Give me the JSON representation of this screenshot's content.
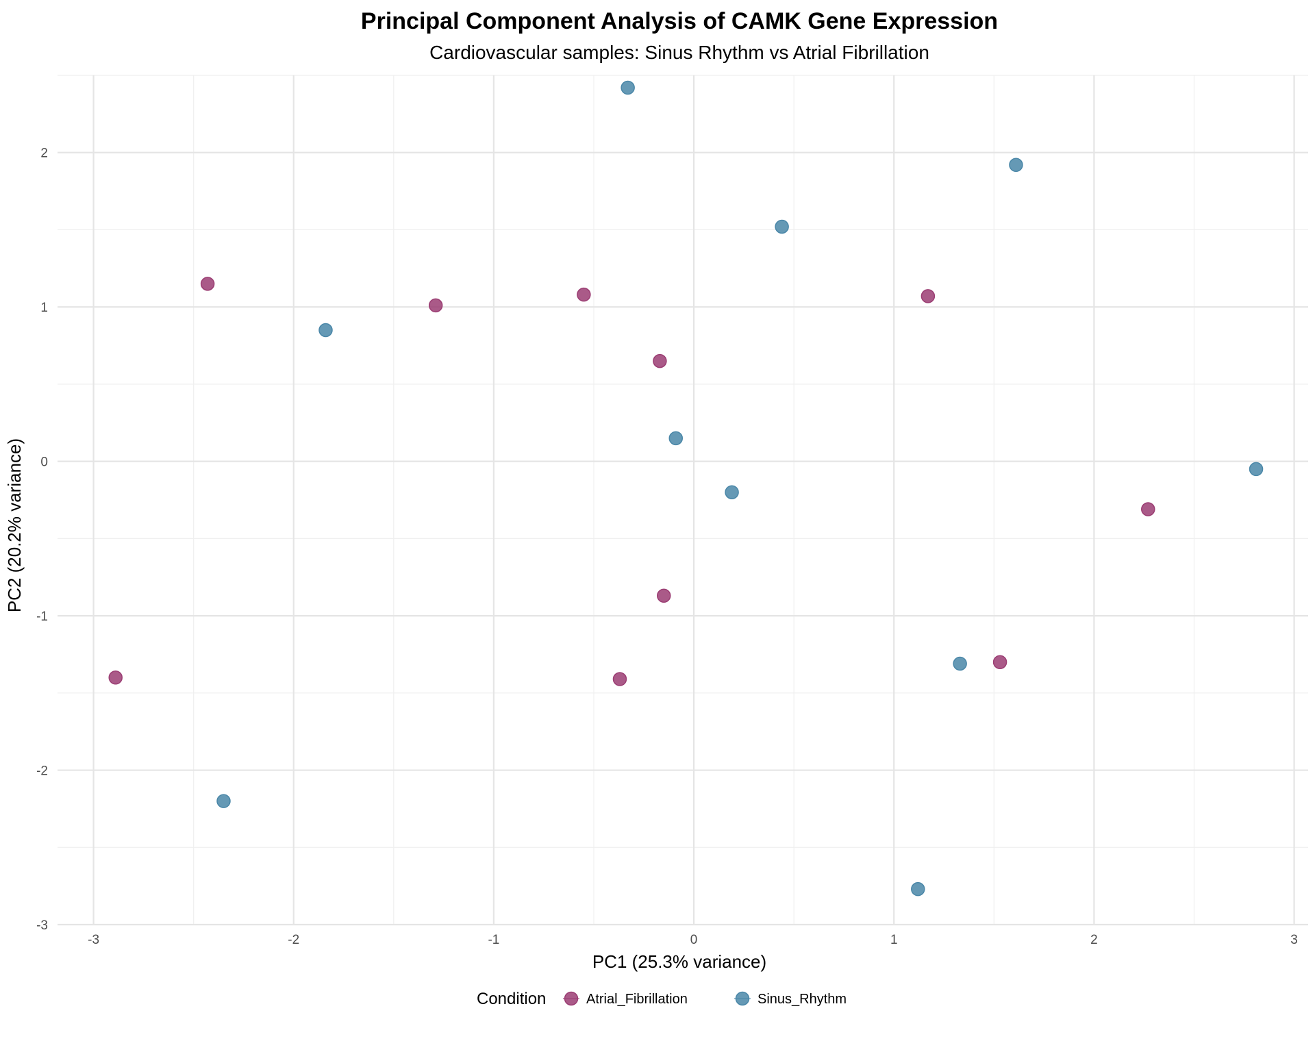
{
  "chart_data": {
    "type": "scatter",
    "title": "Principal Component Analysis of CAMK Gene Expression",
    "subtitle": "Cardiovascular samples: Sinus Rhythm vs Atrial Fibrillation",
    "xlabel": "PC1 (25.3% variance)",
    "ylabel": "PC2 (20.2% variance)",
    "xlim": [
      -3.18,
      3.07
    ],
    "ylim": [
      -3.0,
      2.5
    ],
    "x_ticks": [
      -3,
      -2,
      -1,
      0,
      1,
      2,
      3
    ],
    "x_tick_labels": [
      "-3",
      "-2",
      "-1",
      "0",
      "1",
      "2",
      "3"
    ],
    "y_ticks": [
      -3,
      -2,
      -1,
      0,
      1,
      2
    ],
    "y_tick_labels": [
      "-3",
      "-2",
      "-1",
      "0",
      "1",
      "2"
    ],
    "grid": true,
    "legend": {
      "title": "Condition",
      "placement": "bottom"
    },
    "series": [
      {
        "name": "Atrial_Fibrillation",
        "color": "#9B3D73",
        "points": [
          {
            "x": -2.89,
            "y": -1.4
          },
          {
            "x": -2.43,
            "y": 1.15
          },
          {
            "x": -1.29,
            "y": 1.01
          },
          {
            "x": -0.55,
            "y": 1.08
          },
          {
            "x": -0.17,
            "y": 0.65
          },
          {
            "x": -0.15,
            "y": -0.87
          },
          {
            "x": -0.37,
            "y": -1.41
          },
          {
            "x": 1.17,
            "y": 1.07
          },
          {
            "x": 1.53,
            "y": -1.3
          },
          {
            "x": 2.27,
            "y": -0.31
          }
        ]
      },
      {
        "name": "Sinus_Rhythm",
        "color": "#4A87A8",
        "points": [
          {
            "x": -0.33,
            "y": 2.42
          },
          {
            "x": 1.61,
            "y": 1.92
          },
          {
            "x": 0.44,
            "y": 1.52
          },
          {
            "x": -1.84,
            "y": 0.85
          },
          {
            "x": -0.09,
            "y": 0.15
          },
          {
            "x": 0.19,
            "y": -0.2
          },
          {
            "x": 2.81,
            "y": -0.05
          },
          {
            "x": 1.33,
            "y": -1.31
          },
          {
            "x": -2.35,
            "y": -2.2
          },
          {
            "x": 1.12,
            "y": -2.77
          }
        ]
      }
    ]
  }
}
